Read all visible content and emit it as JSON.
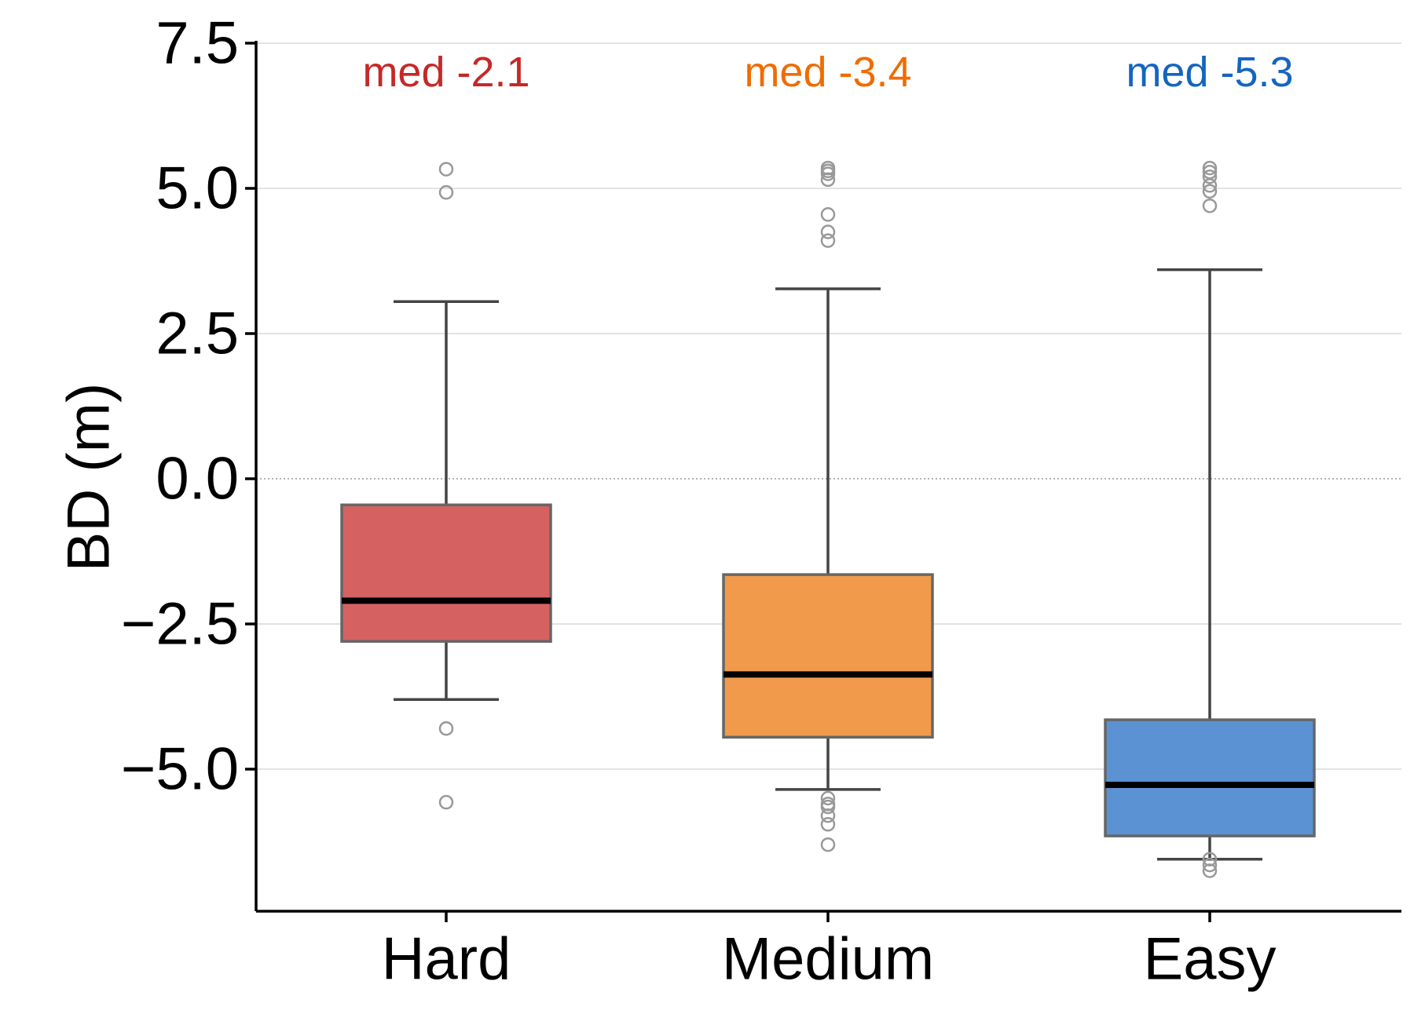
{
  "chart_data": {
    "type": "box",
    "title": "",
    "xlabel": "",
    "ylabel": "BD (m)",
    "ylim": [
      -7.4,
      7.5
    ],
    "yticks": [
      -5.0,
      -2.5,
      0.0,
      2.5,
      5.0,
      7.5
    ],
    "ytick_labels": [
      "−5.0",
      "−2.5",
      "0.0",
      "2.5",
      "5.0",
      "7.5"
    ],
    "grid": "horizontal",
    "reference_line": 0.0,
    "categories": [
      "Hard",
      "Medium",
      "Easy"
    ],
    "boxes": [
      {
        "name": "Hard",
        "color": "#d56261",
        "label_color": "#c62828",
        "median_label": "med -2.1",
        "whisker_low": -3.8,
        "q1": -2.8,
        "median": -2.1,
        "q3": -0.45,
        "whisker_high": 3.05,
        "outliers": [
          5.33,
          4.93,
          -4.3,
          -5.57
        ]
      },
      {
        "name": "Medium",
        "color": "#f19a4c",
        "label_color": "#ef6c00",
        "median_label": "med -3.4",
        "whisker_low": -5.35,
        "q1": -4.45,
        "median": -3.37,
        "q3": -1.65,
        "whisker_high": 3.27,
        "outliers": [
          5.35,
          5.3,
          5.25,
          5.15,
          4.55,
          4.25,
          4.1,
          -5.5,
          -5.6,
          -5.65,
          -5.8,
          -5.95,
          -6.3
        ]
      },
      {
        "name": "Easy",
        "color": "#5b92d3",
        "label_color": "#1565c0",
        "median_label": "med -5.3",
        "whisker_low": -6.55,
        "q1": -6.15,
        "median": -5.27,
        "q3": -4.15,
        "whisker_high": 3.6,
        "outliers": [
          5.35,
          5.28,
          5.2,
          5.05,
          4.95,
          4.7,
          -6.55,
          -6.65,
          -6.75
        ]
      }
    ]
  }
}
